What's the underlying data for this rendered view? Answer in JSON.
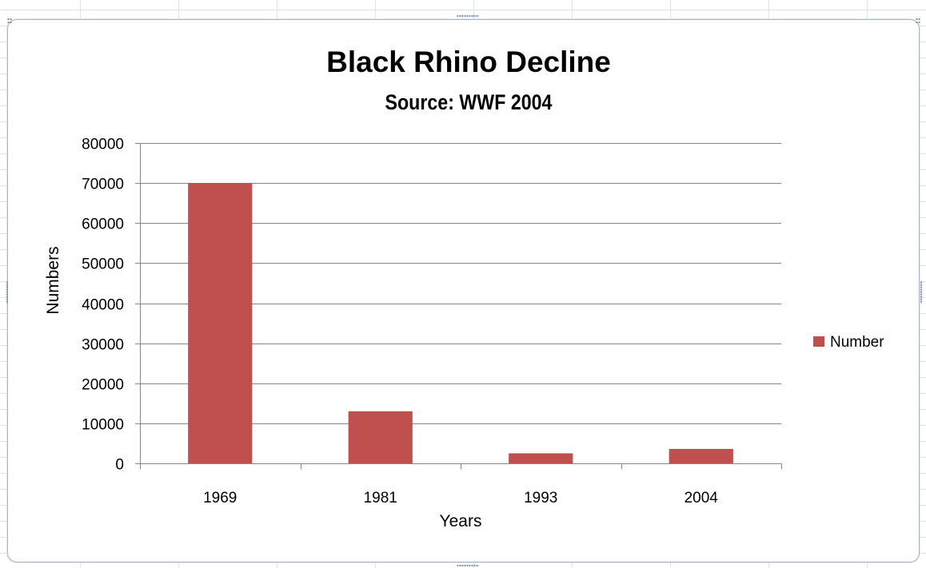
{
  "chart_data": {
    "type": "bar",
    "title": "Black Rhino Decline",
    "subtitle": "Source: WWF 2004",
    "xlabel": "Years",
    "ylabel": "Numbers",
    "categories": [
      "1969",
      "1981",
      "1993",
      "2004"
    ],
    "series": [
      {
        "name": "Number",
        "values": [
          70000,
          13000,
          2500,
          3600
        ],
        "color": "#c0504d"
      }
    ],
    "ylim": [
      0,
      80000
    ],
    "yticks": [
      0,
      10000,
      20000,
      30000,
      40000,
      50000,
      60000,
      70000,
      80000
    ],
    "grid": true,
    "legend_position": "right"
  },
  "colors": {
    "bar": "#c0504d",
    "gridline": "#868686",
    "frame_border": "#a9b6c6",
    "sheet_grid": "#d7e3ef"
  }
}
